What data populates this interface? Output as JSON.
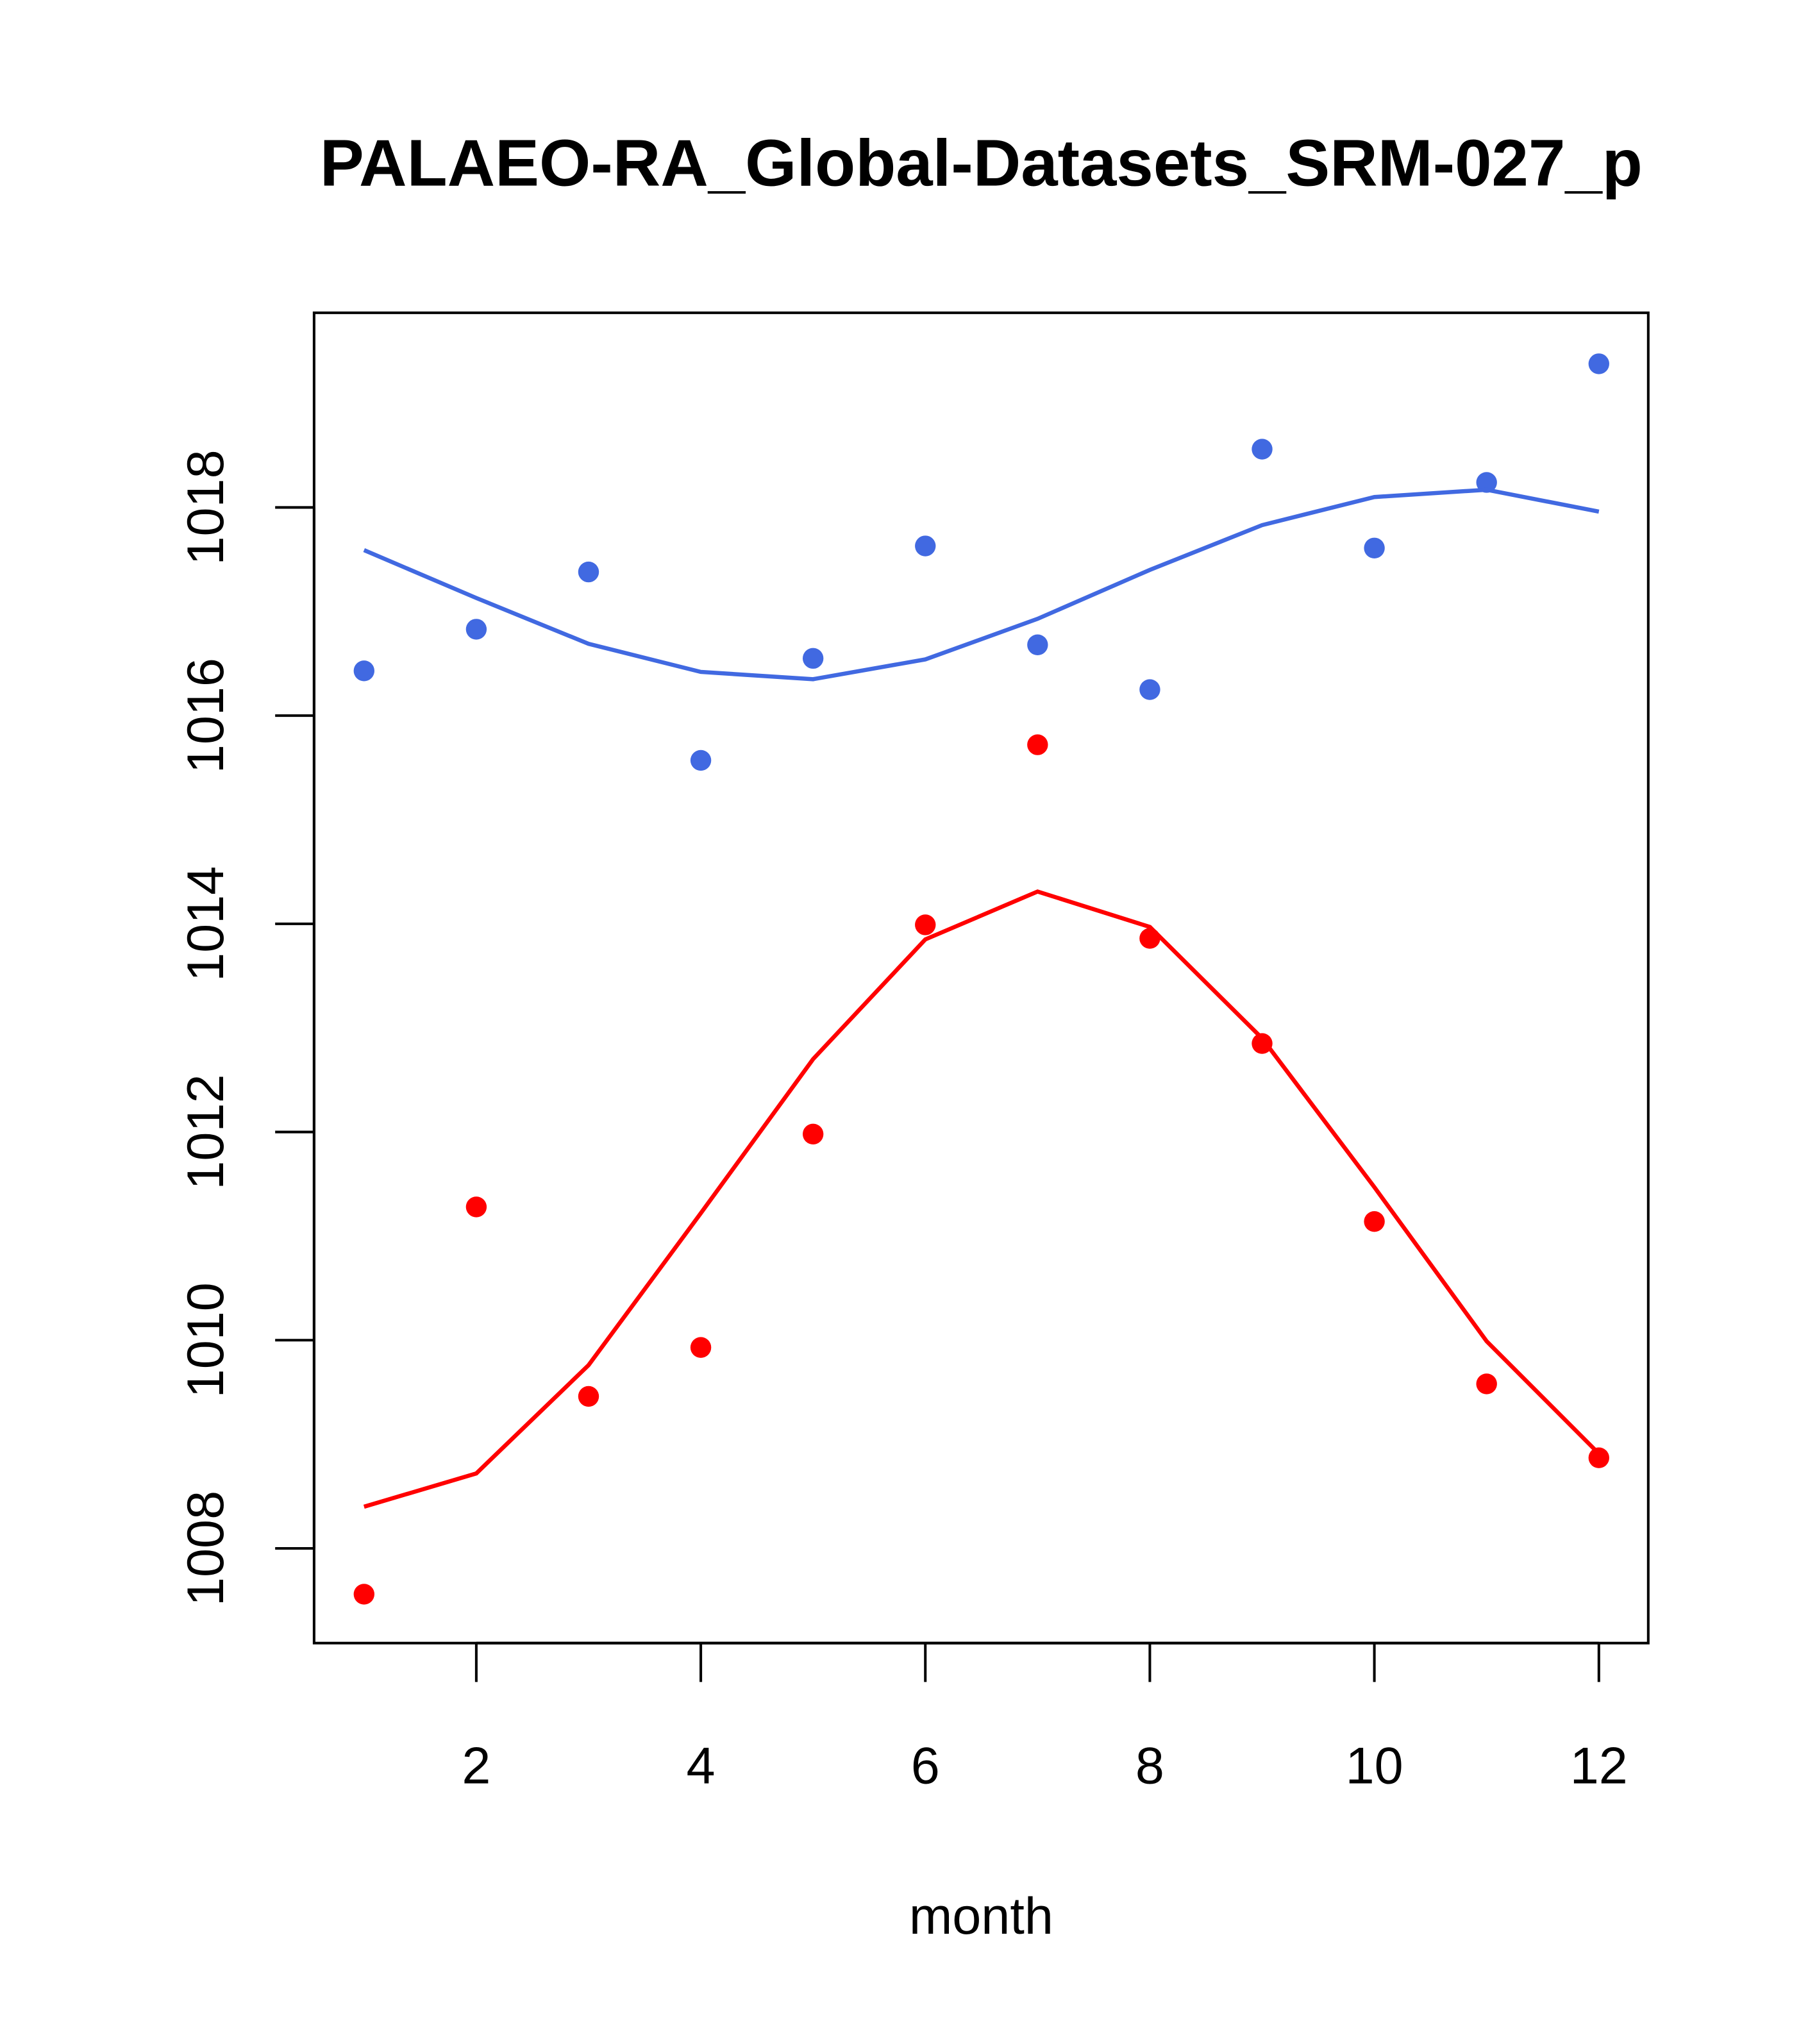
{
  "chart_data": {
    "type": "scatter",
    "title": "PALAEO-RA_Global-Datasets_SRM-027_p",
    "xlabel": "month",
    "ylabel": "",
    "xlim": [
      0.555,
      12.44
    ],
    "ylim": [
      1007.09,
      1019.87
    ],
    "x_ticks": [
      2,
      4,
      6,
      8,
      10,
      12
    ],
    "x_tick_labels": [
      "2",
      "4",
      "6",
      "8",
      "10",
      "12"
    ],
    "y_ticks": [
      1008,
      1010,
      1012,
      1014,
      1016,
      1018
    ],
    "y_tick_labels": [
      "1008",
      "1010",
      "1012",
      "1014",
      "1016",
      "1018"
    ],
    "grid": false,
    "x": [
      1,
      2,
      3,
      4,
      5,
      6,
      7,
      8,
      9,
      10,
      11,
      12
    ],
    "series": [
      {
        "name": "blue points",
        "kind": "points",
        "color": "#4169e1",
        "values": [
          1016.43,
          1016.83,
          1017.38,
          1015.57,
          1016.55,
          1017.63,
          1016.68,
          1016.25,
          1018.56,
          1017.61,
          1018.24,
          1019.38
        ]
      },
      {
        "name": "blue line",
        "kind": "line",
        "color": "#4169e1",
        "values": [
          1017.59,
          1017.13,
          1016.69,
          1016.42,
          1016.35,
          1016.54,
          1016.93,
          1017.4,
          1017.83,
          1018.1,
          1018.17,
          1017.96
        ]
      },
      {
        "name": "red points",
        "kind": "points",
        "color": "#ff0000",
        "values": [
          1007.56,
          1011.28,
          1009.46,
          1009.93,
          1011.98,
          1013.99,
          1015.72,
          1013.86,
          1012.85,
          1011.14,
          1009.58,
          1008.87
        ]
      },
      {
        "name": "red line",
        "kind": "line",
        "color": "#ff0000",
        "values": [
          1008.4,
          1008.72,
          1009.76,
          1011.22,
          1012.7,
          1013.85,
          1014.31,
          1013.97,
          1012.9,
          1011.47,
          1009.99,
          1008.91
        ]
      }
    ]
  }
}
